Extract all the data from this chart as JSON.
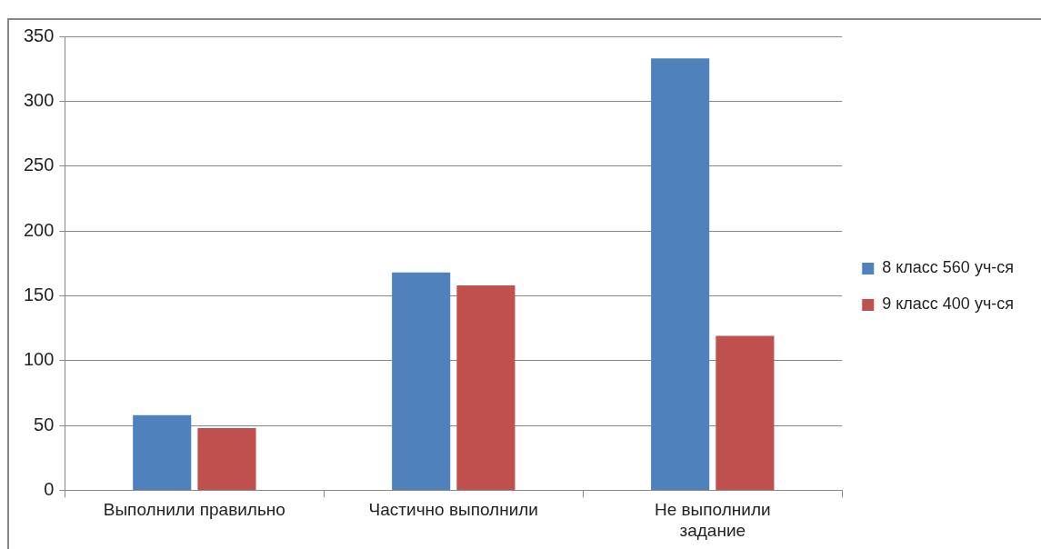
{
  "chart_data": {
    "type": "bar",
    "categories": [
      "Выполнили правильно",
      "Частично выполнили",
      "Не выполнили задание"
    ],
    "series": [
      {
        "name": "8 класс 560 уч-ся",
        "color": "#4f81bd",
        "values": [
          58,
          168,
          333
        ]
      },
      {
        "name": "9 класс 400 уч-ся",
        "color": "#c0504d",
        "values": [
          48,
          158,
          119
        ]
      }
    ],
    "ylim": [
      0,
      350
    ],
    "yticks": [
      0,
      50,
      100,
      150,
      200,
      250,
      300,
      350
    ],
    "grid": "y",
    "legend": "right"
  }
}
